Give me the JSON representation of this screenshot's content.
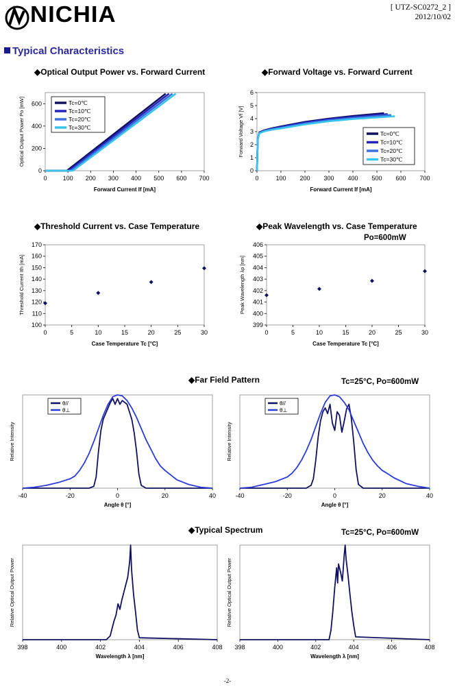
{
  "header": {
    "logo_text": "NICHIA",
    "doc_id": "[ UTZ-SC0272_2 ]",
    "doc_date": "2012/10/02",
    "section_title": "Typical Characteristics",
    "page_number": "-2-"
  },
  "titles": {
    "t1": "◆Optical Output Power vs. Forward Current",
    "t2": "◆Forward Voltage vs. Forward Current",
    "t3": "◆Threshold Current vs. Case Temperature",
    "t4": "◆Peak Wavelength vs. Case Temperature",
    "t4_cond": "Po=600mW",
    "t5": "◆Far Field Pattern",
    "t5_cond": "Tc=25°C, Po=600mW",
    "t6": "◆Typical Spectrum",
    "t6_cond": "Tc=25°C, Po=600mW"
  },
  "colors": {
    "navy": "#101060",
    "dark_blue": "#2424b8",
    "blue": "#3a6fe0",
    "cyan": "#38c4ee",
    "theta_para": "#101060",
    "theta_perp": "#2a3ad8"
  },
  "chart_data": [
    {
      "id": "po_if",
      "type": "line",
      "title": "Optical Output Power vs. Forward Current",
      "xlabel": "Forward Current If [mA]",
      "ylabel": "Optical Output Power Po [mW]",
      "xlim": [
        0,
        700
      ],
      "ylim": [
        0,
        700
      ],
      "xticks": [
        0,
        100,
        200,
        300,
        400,
        500,
        600,
        700
      ],
      "yticks": [
        0,
        200,
        400,
        600
      ],
      "legend_position": "top-left",
      "series": [
        {
          "name": "Tc=0℃",
          "color": "#101060",
          "x": [
            0,
            95,
            530
          ],
          "y": [
            0,
            0,
            690
          ]
        },
        {
          "name": "Tc=10℃",
          "color": "#2424b8",
          "x": [
            0,
            103,
            545
          ],
          "y": [
            0,
            0,
            690
          ]
        },
        {
          "name": "Tc=20℃",
          "color": "#3a6fe0",
          "x": [
            0,
            112,
            560
          ],
          "y": [
            0,
            0,
            690
          ]
        },
        {
          "name": "Tc=30℃",
          "color": "#38c4ee",
          "x": [
            0,
            122,
            575
          ],
          "y": [
            0,
            0,
            690
          ]
        }
      ]
    },
    {
      "id": "vf_if",
      "type": "line",
      "title": "Forward Voltage vs. Forward Current",
      "xlabel": "Forward Current If [mA]",
      "ylabel": "Forward Voltage Vf [V]",
      "xlim": [
        0,
        700
      ],
      "ylim": [
        0,
        6
      ],
      "xticks": [
        0,
        100,
        200,
        300,
        400,
        500,
        600,
        700
      ],
      "yticks": [
        0,
        1,
        2,
        3,
        4,
        5,
        6
      ],
      "legend_position": "bottom-right",
      "series": [
        {
          "name": "Tc=0℃",
          "color": "#101060",
          "x": [
            0,
            3,
            10,
            30,
            60,
            100,
            200,
            300,
            400,
            530
          ],
          "y": [
            0,
            2.4,
            2.95,
            3.1,
            3.25,
            3.4,
            3.75,
            4.0,
            4.2,
            4.42
          ]
        },
        {
          "name": "Tc=10℃",
          "color": "#2424b8",
          "x": [
            0,
            3,
            10,
            30,
            60,
            100,
            200,
            300,
            400,
            545
          ],
          "y": [
            0,
            2.4,
            2.93,
            3.08,
            3.22,
            3.36,
            3.7,
            3.95,
            4.13,
            4.35
          ]
        },
        {
          "name": "Tc=20℃",
          "color": "#3a6fe0",
          "x": [
            0,
            3,
            10,
            30,
            60,
            100,
            200,
            300,
            400,
            560
          ],
          "y": [
            0,
            2.4,
            2.9,
            3.05,
            3.18,
            3.3,
            3.63,
            3.88,
            4.05,
            4.28
          ]
        },
        {
          "name": "Tc=30℃",
          "color": "#38c4ee",
          "x": [
            0,
            3,
            10,
            30,
            60,
            100,
            200,
            300,
            400,
            575
          ],
          "y": [
            0,
            2.4,
            2.88,
            3.02,
            3.14,
            3.25,
            3.56,
            3.8,
            3.97,
            4.18
          ]
        }
      ]
    },
    {
      "id": "ith_tc",
      "type": "scatter",
      "title": "Threshold Current vs. Case Temperature",
      "xlabel": "Case Temperature  Tc [°C]",
      "ylabel": "Threshold Current Ith [mA]",
      "xlim": [
        0,
        30
      ],
      "ylim": [
        100,
        170
      ],
      "xticks": [
        0,
        5,
        10,
        15,
        20,
        25,
        30
      ],
      "yticks": [
        100,
        110,
        120,
        130,
        140,
        150,
        160,
        170
      ],
      "x": [
        0,
        10,
        20,
        30
      ],
      "y": [
        119,
        128,
        137.5,
        149.5
      ]
    },
    {
      "id": "lp_tc",
      "type": "scatter",
      "title": "Peak Wavelength vs. Case Temperature",
      "xlabel": "Case Temperature  Tc [°C]",
      "ylabel": "Peak Wavelength λp [nm]",
      "xlim": [
        0,
        30
      ],
      "ylim": [
        399,
        406
      ],
      "xticks": [
        0,
        5,
        10,
        15,
        20,
        25,
        30
      ],
      "yticks": [
        399,
        400,
        401,
        402,
        403,
        404,
        405,
        406
      ],
      "x": [
        0,
        10,
        20,
        30
      ],
      "y": [
        401.6,
        402.15,
        402.85,
        403.7
      ]
    },
    {
      "id": "ffp1",
      "type": "line",
      "title": "Far Field Pattern",
      "xlabel": "Angle θ [°]",
      "ylabel": "Relative Intensity",
      "xlim": [
        -40,
        40
      ],
      "ylim": [
        0,
        1
      ],
      "xticks": [
        -40,
        -20,
        0,
        20,
        40
      ],
      "legend_position": "top-left",
      "series": [
        {
          "name": "θ//",
          "color": "#101060",
          "x": [
            -40,
            -14,
            -12,
            -10,
            -9,
            -8,
            -7,
            -6,
            -5,
            -4,
            -3,
            -2,
            -1,
            0,
            1,
            2,
            3,
            4,
            5,
            6,
            7,
            8,
            9,
            10,
            12,
            40
          ],
          "y": [
            0,
            0,
            0,
            0.02,
            0.12,
            0.4,
            0.62,
            0.74,
            0.8,
            0.86,
            0.92,
            0.96,
            0.9,
            0.96,
            0.9,
            0.94,
            0.92,
            0.9,
            0.82,
            0.74,
            0.6,
            0.4,
            0.15,
            0.03,
            0,
            0
          ]
        },
        {
          "name": "θ⊥",
          "color": "#2a3ad8",
          "x": [
            -40,
            -35,
            -30,
            -25,
            -20,
            -18,
            -16,
            -14,
            -12,
            -10,
            -8,
            -6,
            -4,
            -2,
            0,
            2,
            4,
            6,
            8,
            10,
            12,
            14,
            16,
            18,
            20,
            22,
            25,
            30,
            35,
            40
          ],
          "y": [
            0,
            0.01,
            0.03,
            0.06,
            0.1,
            0.13,
            0.19,
            0.27,
            0.37,
            0.5,
            0.64,
            0.78,
            0.9,
            0.98,
            1.0,
            0.99,
            0.94,
            0.86,
            0.76,
            0.64,
            0.52,
            0.42,
            0.32,
            0.24,
            0.19,
            0.15,
            0.09,
            0.04,
            0.01,
            0
          ]
        }
      ]
    },
    {
      "id": "ffp2",
      "type": "line",
      "title": "Far Field Pattern",
      "xlabel": "Angle θ [°]",
      "ylabel": "Relative Intensity",
      "xlim": [
        -40,
        40
      ],
      "ylim": [
        0,
        1
      ],
      "xticks": [
        -40,
        -20,
        0,
        20,
        40
      ],
      "legend_position": "top-left",
      "series": [
        {
          "name": "θ//",
          "color": "#101060",
          "x": [
            -40,
            -14,
            -12,
            -10,
            -9,
            -8,
            -7,
            -6,
            -5,
            -4,
            -3,
            -2,
            -1,
            0,
            1,
            2,
            3,
            4,
            5,
            6,
            7,
            8,
            9,
            10,
            12,
            40
          ],
          "y": [
            0,
            0,
            0,
            0.03,
            0.1,
            0.3,
            0.55,
            0.72,
            0.82,
            0.86,
            0.8,
            0.9,
            0.7,
            0.62,
            0.82,
            0.78,
            0.6,
            0.72,
            0.85,
            0.9,
            0.75,
            0.5,
            0.2,
            0.04,
            0,
            0
          ]
        },
        {
          "name": "θ⊥",
          "color": "#2a3ad8",
          "x": [
            -40,
            -35,
            -30,
            -25,
            -20,
            -18,
            -16,
            -14,
            -12,
            -10,
            -8,
            -6,
            -4,
            -2,
            0,
            2,
            4,
            6,
            8,
            10,
            12,
            14,
            16,
            18,
            20,
            22,
            25,
            30,
            35,
            40
          ],
          "y": [
            0,
            0.01,
            0.04,
            0.07,
            0.12,
            0.16,
            0.22,
            0.3,
            0.4,
            0.52,
            0.66,
            0.8,
            0.92,
            0.99,
            1.0,
            0.98,
            0.92,
            0.84,
            0.72,
            0.6,
            0.48,
            0.38,
            0.3,
            0.24,
            0.19,
            0.16,
            0.11,
            0.05,
            0.02,
            0
          ]
        }
      ]
    },
    {
      "id": "spec1",
      "type": "line",
      "title": "Typical Spectrum",
      "xlabel": "Wavelength λ [nm]",
      "ylabel": "Relative Optical Output Power",
      "xlim": [
        398,
        408
      ],
      "ylim": [
        0,
        1
      ],
      "xticks": [
        398,
        400,
        402,
        404,
        406,
        408
      ],
      "series": [
        {
          "name": "",
          "color": "#101060",
          "x": [
            398,
            402.3,
            402.5,
            402.6,
            402.7,
            402.8,
            402.9,
            403.0,
            403.1,
            403.2,
            403.3,
            403.4,
            403.5,
            403.55,
            403.6,
            403.7,
            403.8,
            403.9,
            404.0,
            408
          ],
          "y": [
            0,
            0,
            0.04,
            0.12,
            0.2,
            0.26,
            0.38,
            0.32,
            0.42,
            0.5,
            0.58,
            0.66,
            0.82,
            1.0,
            0.74,
            0.48,
            0.3,
            0.1,
            0.02,
            0
          ]
        }
      ]
    },
    {
      "id": "spec2",
      "type": "line",
      "title": "Typical Spectrum",
      "xlabel": "Wavelength λ [nm]",
      "ylabel": "Relative Optical Output Power",
      "xlim": [
        398,
        408
      ],
      "ylim": [
        0,
        1
      ],
      "xticks": [
        398,
        400,
        402,
        404,
        406,
        408
      ],
      "series": [
        {
          "name": "",
          "color": "#101060",
          "x": [
            398,
            402.7,
            402.8,
            402.9,
            403.0,
            403.1,
            403.15,
            403.2,
            403.3,
            403.4,
            403.5,
            403.55,
            403.6,
            403.7,
            403.8,
            403.9,
            404.0,
            404.1,
            408
          ],
          "y": [
            0,
            0,
            0.1,
            0.3,
            0.55,
            0.76,
            0.6,
            0.8,
            0.72,
            0.62,
            0.9,
            1.0,
            0.85,
            0.68,
            0.48,
            0.3,
            0.15,
            0.03,
            0
          ]
        }
      ]
    }
  ]
}
